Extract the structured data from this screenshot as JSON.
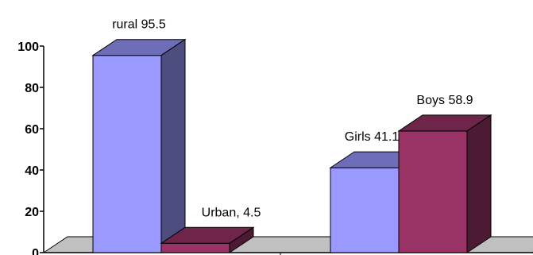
{
  "chart_data": {
    "type": "bar",
    "style": "3d",
    "groups": [
      {
        "bars": [
          {
            "label": "rural 95.5",
            "value": 95.5,
            "color": "#9999ff"
          },
          {
            "label": "Urban, 4.5",
            "value": 4.5,
            "color": "#993366"
          }
        ]
      },
      {
        "bars": [
          {
            "label": "Girls 41.1",
            "value": 41.1,
            "color": "#9999ff"
          },
          {
            "label": "Boys 58.9",
            "value": 58.9,
            "color": "#993366"
          }
        ]
      }
    ],
    "y_ticks": [
      "0",
      "20",
      "40",
      "60",
      "80",
      "100"
    ],
    "ylim": [
      0,
      100
    ],
    "title": "",
    "xlabel": "",
    "ylabel": "",
    "legend": "none",
    "floor_color": "#c0c0c0"
  }
}
